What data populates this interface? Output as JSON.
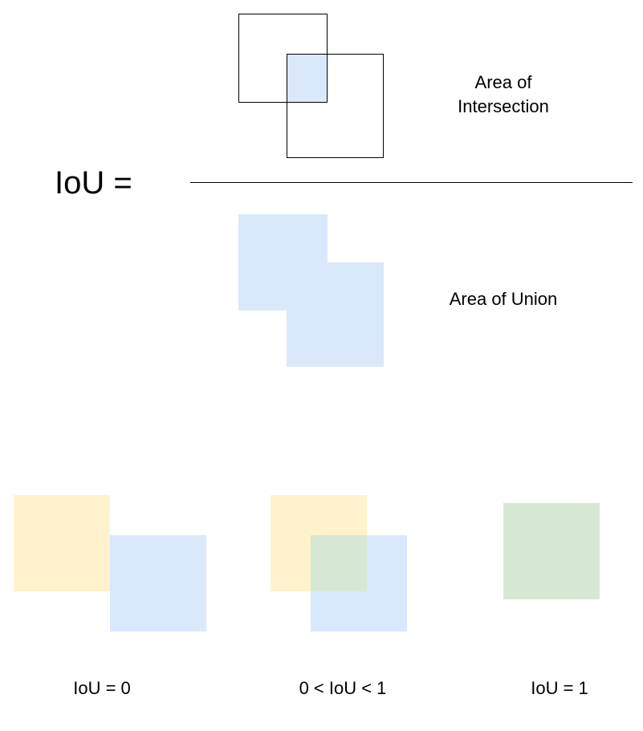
{
  "formula": {
    "lhs": "IoU =",
    "numerator_label_line1": "Area of",
    "numerator_label_line2": "Intersection",
    "denominator_label": "Area of Union"
  },
  "examples": [
    {
      "label": "IoU = 0"
    },
    {
      "label": "0 < IoU < 1"
    },
    {
      "label": "IoU = 1"
    }
  ],
  "colors": {
    "blue": "#dae8fc",
    "yellow": "#fff2cc",
    "green": "#d5e8d4",
    "overlap_green": "#d5e8d4",
    "outline": "#000000"
  }
}
